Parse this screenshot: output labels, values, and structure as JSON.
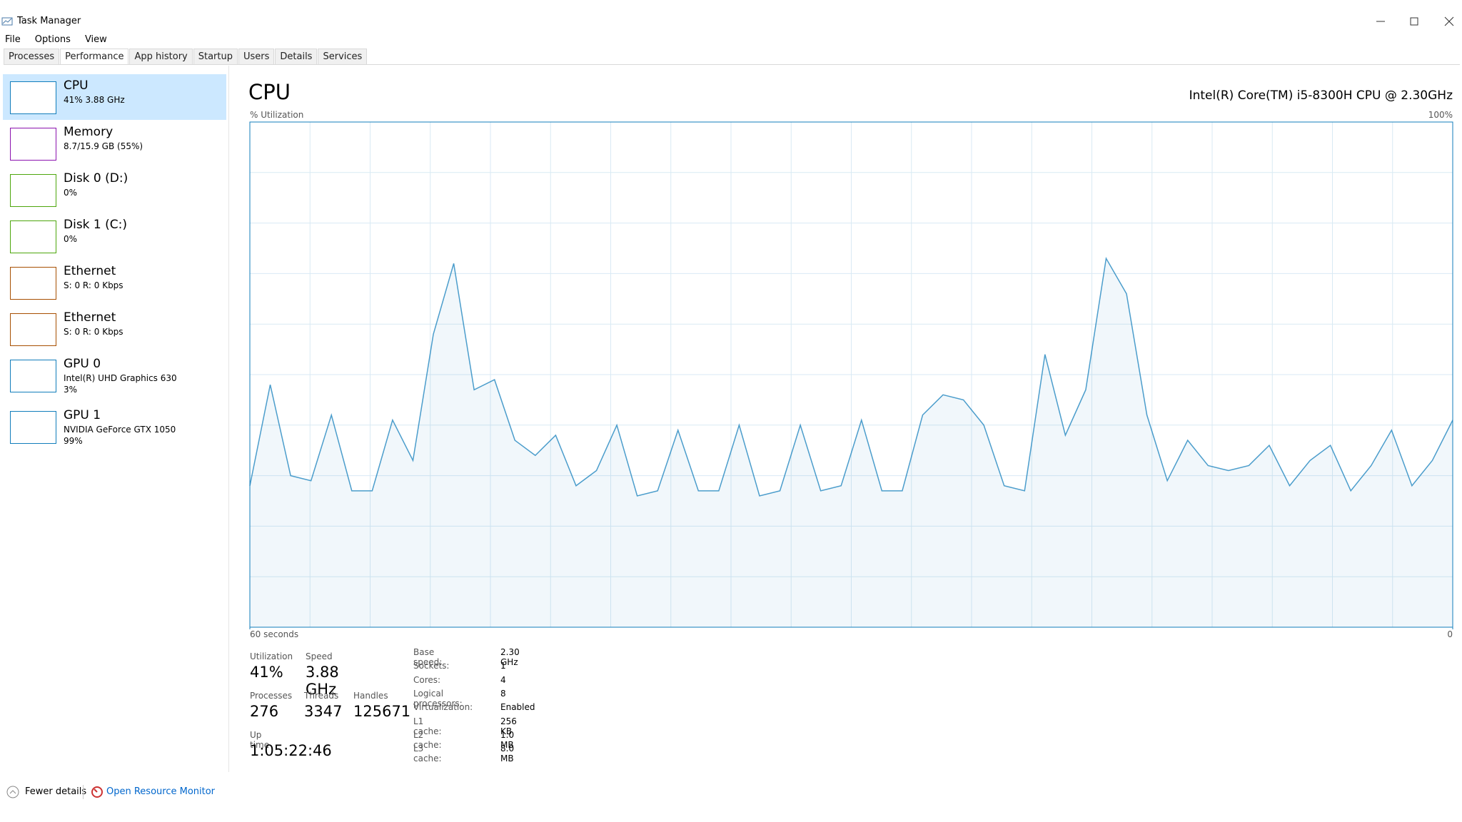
{
  "window": {
    "title": "Task Manager"
  },
  "menu": [
    "File",
    "Options",
    "View"
  ],
  "tabs": {
    "items": [
      "Processes",
      "Performance",
      "App history",
      "Startup",
      "Users",
      "Details",
      "Services"
    ],
    "active": 1
  },
  "sidebar": {
    "active": 0,
    "items": [
      {
        "name": "CPU",
        "lines": [
          "41% 3.88 GHz"
        ],
        "color": "#117dbb"
      },
      {
        "name": "Memory",
        "lines": [
          "8.7/15.9 GB (55%)"
        ],
        "color": "#8b12ae"
      },
      {
        "name": "Disk 0 (D:)",
        "lines": [
          "0%"
        ],
        "color": "#4da60c"
      },
      {
        "name": "Disk 1 (C:)",
        "lines": [
          "0%"
        ],
        "color": "#4da60c"
      },
      {
        "name": "Ethernet",
        "lines": [
          "S: 0 R: 0 Kbps"
        ],
        "color": "#a74f01"
      },
      {
        "name": "Ethernet",
        "lines": [
          "S: 0 R: 0 Kbps"
        ],
        "color": "#a74f01"
      },
      {
        "name": "GPU 0",
        "lines": [
          "Intel(R) UHD Graphics 630",
          "3%"
        ],
        "color": "#117dbb"
      },
      {
        "name": "GPU 1",
        "lines": [
          "NVIDIA GeForce GTX 1050",
          "99%"
        ],
        "color": "#117dbb"
      }
    ]
  },
  "panel": {
    "title": "CPU",
    "model": "Intel(R) Core(TM) i5-8300H CPU @ 2.30GHz",
    "chart_data": {
      "type": "line",
      "y_label": "% Utilization",
      "color": "#117dbb",
      "grid": true,
      "ylim": [
        0,
        100
      ],
      "yticks": [
        {
          "value": 100,
          "label": "100%"
        }
      ],
      "xlim": [
        60,
        0
      ],
      "xticks": [
        {
          "value": 60,
          "label": "60 seconds"
        },
        0
      ],
      "values": [
        28,
        48,
        30,
        29,
        42,
        27,
        27,
        41,
        33,
        58,
        72,
        47,
        49,
        37,
        34,
        38,
        28,
        31,
        40,
        26,
        27,
        39,
        27,
        27,
        40,
        26,
        27,
        40,
        27,
        28,
        41,
        27,
        27,
        42,
        46,
        45,
        40,
        28,
        27,
        54,
        38,
        47,
        73,
        66,
        42,
        29,
        37,
        32,
        31,
        32,
        36,
        28,
        33,
        36,
        27,
        32,
        39,
        28,
        33,
        41
      ]
    },
    "stats": [
      {
        "label": "Utilization",
        "value": "41%"
      },
      {
        "label": "Speed",
        "value": "3.88 GHz"
      },
      {
        "label": "Processes",
        "value": "276"
      },
      {
        "label": "Threads",
        "value": "3347"
      },
      {
        "label": "Handles",
        "value": "125671"
      },
      {
        "label": "Up time",
        "value": "1:05:22:46"
      }
    ],
    "specs": [
      {
        "label": "Base speed:",
        "value": "2.30 GHz"
      },
      {
        "label": "Sockets:",
        "value": "1"
      },
      {
        "label": "Cores:",
        "value": "4"
      },
      {
        "label": "Logical processors:",
        "value": "8"
      },
      {
        "label": "Virtualization:",
        "value": "Enabled"
      },
      {
        "label": "L1 cache:",
        "value": "256 KB"
      },
      {
        "label": "L2 cache:",
        "value": "1.0 MB"
      },
      {
        "label": "L3 cache:",
        "value": "8.0 MB"
      }
    ]
  },
  "footer": {
    "fewer": "Fewer details",
    "monitor": "Open Resource Monitor"
  }
}
